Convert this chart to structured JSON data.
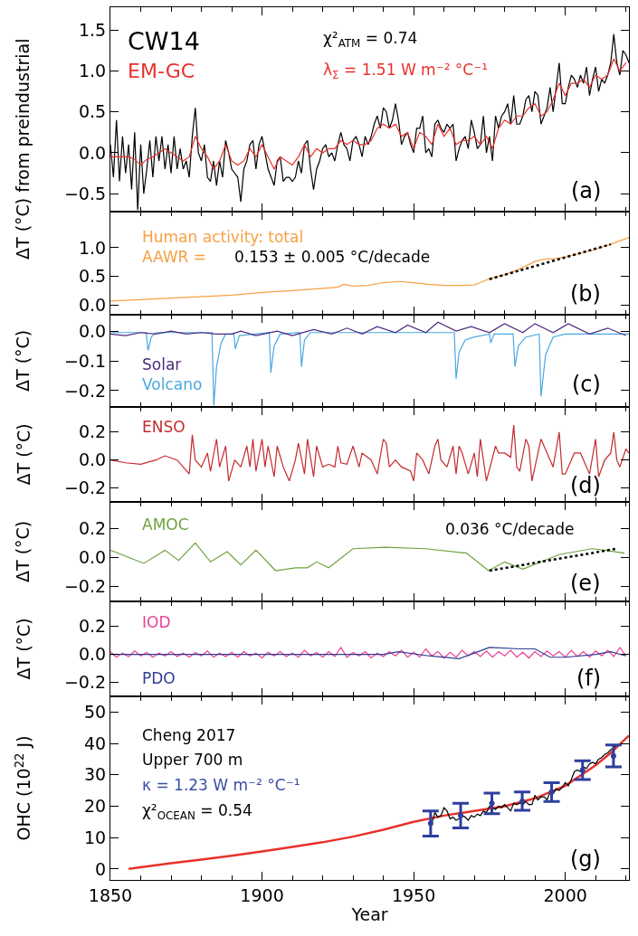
{
  "chart_data": [
    {
      "type": "line",
      "ylabel": "ΔT (°C) from preindustrial",
      "xlim": [
        1850,
        2021
      ],
      "xticks": [
        1850,
        1900,
        1950,
        2000
      ],
      "ylim": [
        -0.72,
        1.78
      ],
      "yticks": [
        {
          "value": -0.5,
          "label": "−0.5"
        },
        {
          "value": 0,
          "label": "0.0"
        },
        0.5,
        {
          "value": 1.0,
          "label": "1.0"
        },
        1.5
      ],
      "tick_labels": "y",
      "annotations": [
        "χ²$_{ATM}$ = 0.74",
        "λ$_{Σ}$ = 1.51 W m⁻² °C⁻¹",
        "(a)"
      ],
      "series": [
        {
          "name": "CW14",
          "color": "#000000",
          "x": [
            1850,
            1851,
            1852,
            1853,
            1854,
            1855,
            1856,
            1857,
            1858,
            1859,
            1860,
            1861,
            1862,
            1863,
            1864,
            1865,
            1866,
            1867,
            1868,
            1869,
            1870,
            1871,
            1872,
            1873,
            1874,
            1875,
            1876,
            1877,
            1878,
            1879,
            1880,
            1881,
            1882,
            1883,
            1884,
            1885,
            1886,
            1887,
            1888,
            1889,
            1890,
            1891,
            1892,
            1893,
            1894,
            1895,
            1896,
            1897,
            1898,
            1899,
            1900,
            1901,
            1902,
            1903,
            1904,
            1905,
            1906,
            1907,
            1908,
            1909,
            1910,
            1911,
            1912,
            1913,
            1914,
            1915,
            1916,
            1917,
            1918,
            1919,
            1920,
            1921,
            1922,
            1923,
            1924,
            1925,
            1926,
            1927,
            1928,
            1929,
            1930,
            1931,
            1932,
            1933,
            1934,
            1935,
            1936,
            1937,
            1938,
            1939,
            1940,
            1941,
            1942,
            1943,
            1944,
            1945,
            1946,
            1947,
            1948,
            1949,
            1950,
            1951,
            1952,
            1953,
            1954,
            1955,
            1956,
            1957,
            1958,
            1959,
            1960,
            1961,
            1962,
            1963,
            1964,
            1965,
            1966,
            1967,
            1968,
            1969,
            1970,
            1971,
            1972,
            1973,
            1974,
            1975,
            1976,
            1977,
            1978,
            1979,
            1980,
            1981,
            1982,
            1983,
            1984,
            1985,
            1986,
            1987,
            1988,
            1989,
            1990,
            1991,
            1992,
            1993,
            1994,
            1995,
            1996,
            1997,
            1998,
            1999,
            2000,
            2001,
            2002,
            2003,
            2004,
            2005,
            2006,
            2007,
            2008,
            2009,
            2010,
            2011,
            2012,
            2013,
            2014,
            2015,
            2016,
            2017,
            2018,
            2019,
            2020,
            2021
          ],
          "values": [
            0.1,
            -0.3,
            0.4,
            -0.35,
            0.2,
            -0.25,
            0.1,
            -0.45,
            0.25,
            -0.7,
            0.1,
            -0.5,
            -0.2,
            0.15,
            -0.3,
            0.2,
            -0.1,
            0.2,
            -0.2,
            0.1,
            -0.25,
            0.2,
            -0.2,
            0.05,
            -0.2,
            -0.1,
            -0.3,
            0.2,
            0.55,
            0.0,
            -0.1,
            0.1,
            -0.3,
            -0.35,
            -0.1,
            -0.4,
            -0.1,
            -0.3,
            0.15,
            0.0,
            -0.2,
            -0.25,
            -0.3,
            -0.6,
            -0.2,
            -0.1,
            0.1,
            0.15,
            -0.2,
            0.1,
            0.2,
            0.0,
            -0.2,
            -0.3,
            -0.4,
            -0.1,
            -0.05,
            -0.35,
            -0.3,
            -0.3,
            -0.35,
            -0.3,
            -0.1,
            -0.25,
            0.1,
            0.15,
            -0.2,
            -0.45,
            -0.2,
            -0.1,
            0.05,
            0.1,
            -0.05,
            0.0,
            -0.1,
            0.1,
            0.25,
            0.1,
            0.05,
            -0.1,
            0.15,
            0.2,
            0.1,
            -0.05,
            0.2,
            0.1,
            0.2,
            0.35,
            0.45,
            0.3,
            0.55,
            0.5,
            0.3,
            0.4,
            0.6,
            0.4,
            0.1,
            0.2,
            0.25,
            0.1,
            0.0,
            0.3,
            0.3,
            0.45,
            0.0,
            0.05,
            -0.05,
            0.35,
            0.4,
            0.3,
            0.25,
            0.35,
            0.3,
            0.35,
            -0.1,
            0.05,
            0.15,
            0.2,
            0.05,
            0.4,
            0.25,
            0.05,
            0.1,
            0.45,
            0.0,
            0.2,
            -0.1,
            0.45,
            0.3,
            0.45,
            0.5,
            0.6,
            0.35,
            0.7,
            0.35,
            0.35,
            0.45,
            0.65,
            0.7,
            0.5,
            0.75,
            0.7,
            0.35,
            0.45,
            0.55,
            0.8,
            0.5,
            0.8,
            1.1,
            0.6,
            0.6,
            0.8,
            0.95,
            0.9,
            0.8,
            0.95,
            0.85,
            1.05,
            0.7,
            0.9,
            1.05,
            0.75,
            0.9,
            0.85,
            0.95,
            1.1,
            1.45,
            1.1,
            0.95,
            1.25,
            1.2,
            1.1
          ]
        },
        {
          "name": "EM-GC",
          "color": "#e8312a",
          "x": [
            1850,
            1852,
            1854,
            1856,
            1858,
            1860,
            1862,
            1864,
            1866,
            1868,
            1870,
            1872,
            1874,
            1876,
            1878,
            1880,
            1882,
            1884,
            1886,
            1888,
            1890,
            1892,
            1894,
            1896,
            1898,
            1900,
            1902,
            1904,
            1906,
            1908,
            1910,
            1912,
            1914,
            1916,
            1918,
            1920,
            1922,
            1924,
            1926,
            1928,
            1930,
            1932,
            1934,
            1936,
            1938,
            1940,
            1942,
            1944,
            1946,
            1948,
            1950,
            1952,
            1954,
            1956,
            1958,
            1960,
            1962,
            1964,
            1966,
            1968,
            1970,
            1972,
            1974,
            1976,
            1978,
            1980,
            1982,
            1984,
            1986,
            1988,
            1990,
            1992,
            1994,
            1996,
            1998,
            2000,
            2002,
            2004,
            2006,
            2008,
            2010,
            2012,
            2014,
            2016,
            2018,
            2020
          ],
          "values": [
            -0.05,
            -0.05,
            -0.05,
            -0.05,
            -0.08,
            -0.15,
            -0.08,
            -0.05,
            0.0,
            0.05,
            0.0,
            -0.05,
            -0.1,
            -0.05,
            0.2,
            0.05,
            -0.05,
            -0.2,
            -0.1,
            0.1,
            -0.1,
            -0.15,
            -0.1,
            0.05,
            -0.05,
            0.1,
            -0.05,
            -0.2,
            -0.05,
            -0.1,
            -0.15,
            -0.05,
            0.1,
            -0.05,
            0.05,
            0.0,
            0.05,
            0.05,
            0.15,
            0.1,
            0.15,
            0.1,
            0.1,
            0.15,
            0.3,
            0.35,
            0.3,
            0.35,
            0.2,
            0.25,
            0.05,
            0.25,
            0.2,
            0.1,
            0.35,
            0.2,
            0.3,
            0.1,
            0.15,
            0.15,
            0.2,
            0.1,
            0.2,
            0.05,
            0.3,
            0.4,
            0.35,
            0.45,
            0.45,
            0.55,
            0.6,
            0.45,
            0.5,
            0.65,
            0.85,
            0.7,
            0.85,
            0.85,
            0.9,
            0.8,
            0.95,
            0.9,
            0.95,
            1.15,
            1.0,
            1.1
          ]
        }
      ]
    },
    {
      "type": "line",
      "xlim": [
        1850,
        2021
      ],
      "xticks": [
        1850,
        1900,
        1950,
        2000
      ],
      "ylim": [
        -0.17,
        1.63
      ],
      "yticks": [
        {
          "value": 0,
          "label": "0.0"
        },
        0.5,
        {
          "value": 1.0,
          "label": "1.0"
        }
      ],
      "tick_labels": "y",
      "annotations": [
        "AAWR =",
        "0.153 ± 0.005 °C/decade",
        "(b)"
      ],
      "series": [
        {
          "name": "Human activity: total",
          "color": "#f7a043",
          "x": [
            1850,
            1870,
            1890,
            1900,
            1910,
            1920,
            1925,
            1927,
            1930,
            1935,
            1940,
            1945,
            1950,
            1955,
            1960,
            1965,
            1970,
            1972,
            1975,
            1980,
            1985,
            1990,
            1993,
            1997,
            2000,
            2005,
            2010,
            2015,
            2021
          ],
          "values": [
            0.07,
            0.12,
            0.17,
            0.22,
            0.25,
            0.29,
            0.31,
            0.36,
            0.33,
            0.34,
            0.39,
            0.41,
            0.39,
            0.36,
            0.34,
            0.34,
            0.35,
            0.39,
            0.46,
            0.53,
            0.63,
            0.76,
            0.8,
            0.81,
            0.84,
            0.9,
            0.97,
            1.06,
            1.18
          ]
        },
        {
          "color": "#000000",
          "line_style": "dotted",
          "x": [
            1975,
            2015
          ],
          "values": [
            0.45,
            1.06
          ]
        }
      ]
    },
    {
      "type": "line",
      "xlim": [
        1850,
        2021
      ],
      "xticks": [
        1850,
        1900,
        1950,
        2000
      ],
      "ylim": [
        -0.255,
        0.055
      ],
      "yticks": [
        {
          "value": -0.2,
          "label": "−0.2"
        },
        {
          "value": -0.1,
          "label": "−0.1"
        },
        {
          "value": 0,
          "label": "0.0"
        }
      ],
      "tick_labels": "y",
      "ylabel": "ΔT (°C)",
      "annotations": [
        "(c)"
      ],
      "series": [
        {
          "name": "Volcano",
          "color": "#4aa8e0",
          "x": [
            1850,
            1861.8,
            1862.4,
            1863.5,
            1865,
            1883.5,
            1884.1,
            1885,
            1886.5,
            1888,
            1890.7,
            1891.2,
            1892.5,
            1902.4,
            1902.9,
            1904,
            1906,
            1912.5,
            1913,
            1914,
            1916,
            1963.4,
            1964,
            1965,
            1967,
            1970,
            1975,
            1975.4,
            1976.5,
            1982.8,
            1983.4,
            1984.5,
            1987,
            1991.4,
            1992,
            1993.5,
            1996,
            2000,
            2021
          ],
          "values": [
            -0.005,
            -0.005,
            -0.065,
            -0.02,
            -0.005,
            -0.005,
            -0.25,
            -0.12,
            -0.04,
            -0.01,
            -0.01,
            -0.06,
            -0.015,
            -0.005,
            -0.14,
            -0.05,
            -0.01,
            -0.005,
            -0.12,
            -0.03,
            -0.005,
            -0.005,
            -0.16,
            -0.07,
            -0.03,
            -0.02,
            -0.01,
            -0.04,
            -0.01,
            -0.01,
            -0.12,
            -0.05,
            -0.02,
            -0.01,
            -0.22,
            -0.08,
            -0.02,
            -0.01,
            -0.01
          ]
        },
        {
          "name": "Solar",
          "color": "#4b2a7f",
          "x": [
            1850,
            1855,
            1860,
            1865,
            1870,
            1875,
            1880,
            1885,
            1890,
            1893,
            1898,
            1905,
            1910,
            1917,
            1923,
            1928,
            1933,
            1938,
            1944,
            1948,
            1954,
            1958,
            1964,
            1969,
            1975,
            1980,
            1986,
            1990,
            1996,
            2001,
            2008,
            2014,
            2020
          ],
          "values": [
            -0.01,
            -0.015,
            -0.005,
            -0.01,
            0.0,
            -0.01,
            -0.005,
            -0.01,
            -0.01,
            0.0,
            -0.015,
            0.0,
            -0.015,
            0.005,
            -0.01,
            0.01,
            -0.01,
            0.015,
            -0.005,
            0.02,
            -0.005,
            0.03,
            0.0,
            0.015,
            -0.005,
            0.025,
            -0.005,
            0.025,
            -0.005,
            0.025,
            -0.01,
            0.01,
            -0.015
          ]
        }
      ]
    },
    {
      "type": "line",
      "xlim": [
        1850,
        2021
      ],
      "xticks": [
        1850,
        1900,
        1950,
        2000
      ],
      "ylim": [
        -0.3,
        0.38
      ],
      "yticks": [
        {
          "value": -0.2,
          "label": "−0.2"
        },
        {
          "value": 0,
          "label": "0.0"
        },
        0.2
      ],
      "tick_labels": "y",
      "ylabel": "ΔT (°C)",
      "annotations": [
        "(d)"
      ],
      "series": [
        {
          "name": "ENSO",
          "color": "#c42a2f",
          "x": [
            1850,
            1855,
            1860,
            1865,
            1868,
            1872,
            1874,
            1876,
            1877,
            1878,
            1880,
            1882,
            1883,
            1885,
            1886,
            1888,
            1889,
            1891,
            1893,
            1895,
            1896,
            1897,
            1898,
            1900,
            1901,
            1902,
            1904,
            1905,
            1907,
            1909,
            1911,
            1912,
            1914,
            1915,
            1917,
            1918,
            1920,
            1922,
            1924,
            1925,
            1926,
            1928,
            1930,
            1932,
            1933,
            1936,
            1938,
            1940,
            1941,
            1942,
            1944,
            1946,
            1949,
            1950,
            1951,
            1953,
            1955,
            1957,
            1958,
            1959,
            1961,
            1963,
            1964,
            1965,
            1966,
            1968,
            1970,
            1971,
            1972,
            1974,
            1977,
            1978,
            1980,
            1982,
            1983,
            1984,
            1985,
            1987,
            1988,
            1989,
            1991,
            1992,
            1994,
            1996,
            1998,
            1999,
            2000,
            2003,
            2005,
            2008,
            2010,
            2011,
            2013,
            2015,
            2016,
            2017,
            2018,
            2020,
            2021
          ],
          "values": [
            0.0,
            -0.02,
            -0.03,
            0.0,
            0.03,
            0.0,
            -0.05,
            -0.1,
            0.18,
            0.0,
            -0.05,
            0.05,
            -0.08,
            0.15,
            -0.05,
            0.1,
            -0.15,
            0.0,
            -0.05,
            0.1,
            -0.05,
            0.15,
            -0.08,
            0.15,
            -0.05,
            0.1,
            -0.12,
            0.1,
            -0.05,
            -0.15,
            0.0,
            0.12,
            -0.1,
            0.15,
            -0.12,
            0.1,
            -0.05,
            -0.03,
            -0.05,
            0.1,
            -0.02,
            -0.03,
            0.1,
            -0.05,
            0.05,
            0.0,
            -0.1,
            0.15,
            0.12,
            -0.05,
            0.0,
            -0.05,
            -0.08,
            -0.15,
            0.05,
            0.0,
            -0.1,
            0.1,
            0.15,
            0.0,
            -0.05,
            0.1,
            -0.1,
            0.1,
            0.05,
            -0.1,
            0.05,
            -0.12,
            0.15,
            -0.15,
            0.1,
            0.05,
            0.05,
            0.02,
            0.25,
            -0.05,
            -0.08,
            0.15,
            0.1,
            -0.15,
            0.05,
            0.15,
            0.05,
            -0.05,
            0.2,
            -0.1,
            -0.1,
            0.05,
            0.05,
            -0.1,
            0.15,
            -0.12,
            0.0,
            0.05,
            0.2,
            0.0,
            -0.05,
            0.08,
            0.05
          ]
        }
      ]
    },
    {
      "type": "line",
      "xlim": [
        1850,
        2021
      ],
      "xticks": [
        1850,
        1900,
        1950,
        2000
      ],
      "ylim": [
        -0.3,
        0.38
      ],
      "yticks": [
        {
          "value": -0.2,
          "label": "−0.2"
        },
        {
          "value": 0,
          "label": "0.0"
        },
        0.2
      ],
      "tick_labels": "y",
      "ylabel": "ΔT (°C)",
      "annotations": [
        "0.036 °C/decade",
        "(e)"
      ],
      "series": [
        {
          "name": "AMOC",
          "color": "#6ea23d",
          "x": [
            1850,
            1861,
            1868,
            1872.5,
            1878,
            1883,
            1888.5,
            1893,
            1898,
            1904.5,
            1911,
            1915,
            1918,
            1922,
            1930,
            1940.6,
            1954,
            1967.4,
            1974.7,
            1980,
            1986,
            1998,
            2008.8,
            2012.8,
            2019.5
          ],
          "values": [
            0.05,
            -0.04,
            0.05,
            -0.02,
            0.1,
            -0.03,
            0.04,
            -0.05,
            0.05,
            -0.09,
            -0.07,
            -0.07,
            -0.03,
            -0.07,
            0.06,
            0.07,
            0.06,
            0.03,
            -0.09,
            -0.03,
            -0.08,
            0.02,
            0.06,
            0.05,
            0.03
          ]
        },
        {
          "color": "#000000",
          "line_style": "dotted",
          "x": [
            1975,
            2017
          ],
          "values": [
            -0.09,
            0.06
          ]
        }
      ]
    },
    {
      "type": "line",
      "xlim": [
        1850,
        2021
      ],
      "xticks": [
        1850,
        1900,
        1950,
        2000
      ],
      "ylim": [
        -0.3,
        0.38
      ],
      "yticks": [
        {
          "value": -0.2,
          "label": "−0.2"
        },
        {
          "value": 0,
          "label": "0.0"
        },
        0.2
      ],
      "tick_labels": "y",
      "ylabel": "ΔT (°C)",
      "annotations": [
        "(f)"
      ],
      "series": [
        {
          "name": "IOD",
          "color": "#ec3f98",
          "x": [
            1850,
            1852,
            1854,
            1856,
            1858,
            1860,
            1862,
            1864,
            1866,
            1868,
            1870,
            1872,
            1874,
            1876,
            1878,
            1880,
            1882,
            1884,
            1886,
            1888,
            1890,
            1892,
            1894,
            1896,
            1898,
            1900,
            1902,
            1904,
            1906,
            1908,
            1910,
            1912,
            1914,
            1916,
            1918,
            1920,
            1922,
            1924,
            1926,
            1928,
            1930,
            1932,
            1934,
            1936,
            1938,
            1940,
            1942,
            1944,
            1946,
            1948,
            1950,
            1952,
            1954,
            1956,
            1958,
            1960,
            1962,
            1964,
            1966,
            1968,
            1970,
            1972,
            1974,
            1976,
            1978,
            1980,
            1982,
            1984,
            1986,
            1988,
            1990,
            1992,
            1994,
            1996,
            1998,
            2000,
            2002,
            2004,
            2006,
            2008,
            2010,
            2012,
            2014,
            2016,
            2018,
            2020
          ],
          "values": [
            0.02,
            -0.02,
            0.01,
            -0.015,
            0.025,
            -0.01,
            0.015,
            -0.02,
            0.01,
            -0.01,
            0.02,
            -0.015,
            0.01,
            -0.02,
            0.015,
            -0.01,
            0.025,
            -0.02,
            0.01,
            -0.015,
            0.015,
            -0.02,
            0.02,
            -0.01,
            0.01,
            -0.025,
            0.015,
            -0.01,
            0.02,
            -0.015,
            0.01,
            -0.02,
            0.03,
            -0.01,
            0.015,
            -0.02,
            0.02,
            -0.015,
            0.05,
            -0.02,
            0.015,
            -0.01,
            0.02,
            -0.025,
            0.01,
            -0.015,
            0.02,
            -0.01,
            0.03,
            -0.02,
            0.015,
            -0.02,
            0.04,
            -0.01,
            0.02,
            -0.025,
            0.015,
            -0.02,
            0.03,
            -0.01,
            0.02,
            -0.015,
            0.025,
            -0.02,
            0.02,
            -0.01,
            0.03,
            -0.02,
            0.015,
            -0.025,
            0.02,
            -0.015,
            0.025,
            -0.01,
            0.02,
            -0.02,
            0.03,
            -0.015,
            0.02,
            -0.02,
            0.025,
            -0.01,
            0.03,
            -0.015,
            0.05,
            -0.01
          ]
        },
        {
          "name": "PDO",
          "color": "#2f3c92",
          "x": [
            1850,
            1900,
            1940,
            1945,
            1955,
            1965,
            1970,
            1975,
            1985,
            1990,
            1995,
            2000,
            2010,
            2015,
            2020
          ],
          "values": [
            0.0,
            0.0,
            0.0,
            0.02,
            -0.01,
            -0.03,
            0.01,
            0.05,
            0.04,
            0.04,
            -0.02,
            -0.02,
            0.0,
            0.02,
            -0.01
          ]
        }
      ]
    },
    {
      "type": "line",
      "xlim": [
        1850,
        2021
      ],
      "xticks": [
        1850,
        1900,
        1950,
        2000
      ],
      "ylim": [
        -3.5,
        55
      ],
      "yticks": [
        0,
        10,
        20,
        30,
        40,
        50
      ],
      "ylabel": "OHC (10$^{22}$ J)",
      "xlabel": "Year",
      "annotations": [
        "Upper 700 m",
        "κ = 1.23 W m⁻² °C⁻¹",
        "χ²$_{OCEAN}$ = 0.54",
        "(g)"
      ],
      "series": [
        {
          "color": "#e8312a",
          "x": [
            1856,
            1870,
            1880,
            1890,
            1900,
            1910,
            1920,
            1930,
            1940,
            1950,
            1960,
            1970,
            1980,
            1990,
            2000,
            2010,
            2015,
            2021
          ],
          "values": [
            0,
            1.8,
            3,
            4.2,
            5.6,
            7,
            8.5,
            10.3,
            12.5,
            15,
            17,
            18.5,
            20,
            22.5,
            26.5,
            33,
            37,
            42.5
          ]
        },
        {
          "name": "Cheng 2017",
          "color": "#000000",
          "x": [
            1956,
            1957,
            1958,
            1959,
            1960,
            1961,
            1962,
            1963,
            1964,
            1965,
            1966,
            1967,
            1968,
            1969,
            1970,
            1971,
            1972,
            1973,
            1974,
            1975,
            1976,
            1977,
            1978,
            1979,
            1980,
            1981,
            1982,
            1983,
            1984,
            1985,
            1986,
            1987,
            1988,
            1989,
            1990,
            1991,
            1992,
            1993,
            1994,
            1995,
            1996,
            1997,
            1998,
            1999,
            2000,
            2001,
            2002,
            2003,
            2004,
            2005,
            2006,
            2007,
            2008,
            2009,
            2010,
            2011,
            2012,
            2013,
            2014,
            2015,
            2016,
            2017
          ],
          "values": [
            14.5,
            18,
            16.5,
            17,
            19.5,
            18.5,
            16,
            16.5,
            15.5,
            16,
            17,
            16.5,
            15.5,
            17,
            16.5,
            17.5,
            17,
            18.5,
            18,
            20,
            19.5,
            19,
            20,
            19.5,
            20.5,
            19.5,
            18.5,
            21,
            20.5,
            21,
            20.5,
            21.5,
            20.5,
            20.5,
            23.5,
            22,
            23,
            23,
            22,
            24.5,
            24,
            25.5,
            25,
            26,
            27.5,
            26.5,
            28.5,
            31,
            31.5,
            31,
            32.5,
            32,
            33.5,
            34,
            33.5,
            35,
            35.5,
            36.5,
            37,
            38,
            38.5,
            39.5
          ]
        },
        {
          "type": "scatter",
          "marker": "none",
          "color": "#2e3f9e",
          "x": [
            1955.6,
            1965.5,
            1975.8,
            1985.8,
            1995.5,
            2005.7,
            2015.9
          ],
          "values": [
            14.5,
            17,
            20.9,
            21.6,
            24.5,
            31.5,
            36
          ],
          "errors": [
            4,
            3.9,
            3.3,
            2.9,
            3,
            3,
            3.5
          ]
        }
      ]
    }
  ]
}
